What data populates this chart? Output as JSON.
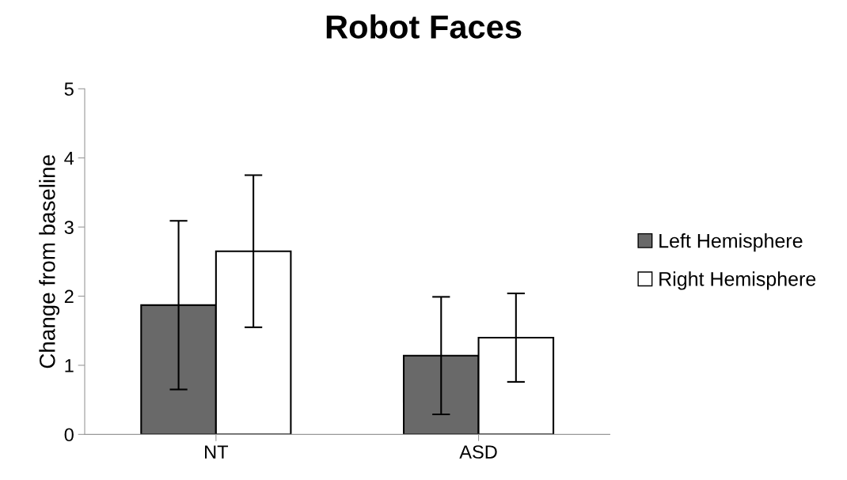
{
  "chart_data": {
    "type": "bar",
    "title": "Robot Faces",
    "ylabel": "Change from baseline",
    "categories": [
      "NT",
      "ASD"
    ],
    "series": [
      {
        "name": "Left Hemisphere",
        "color": "#696969",
        "values": [
          1.87,
          1.14
        ],
        "errors": [
          1.22,
          0.85
        ]
      },
      {
        "name": "Right Hemisphere",
        "color": "#ffffff",
        "values": [
          2.65,
          1.4
        ],
        "errors": [
          1.1,
          0.64
        ]
      }
    ],
    "ylim": [
      0,
      5
    ],
    "yticks": [
      0,
      1,
      2,
      3,
      4,
      5
    ],
    "grid": false,
    "legend": "right"
  }
}
